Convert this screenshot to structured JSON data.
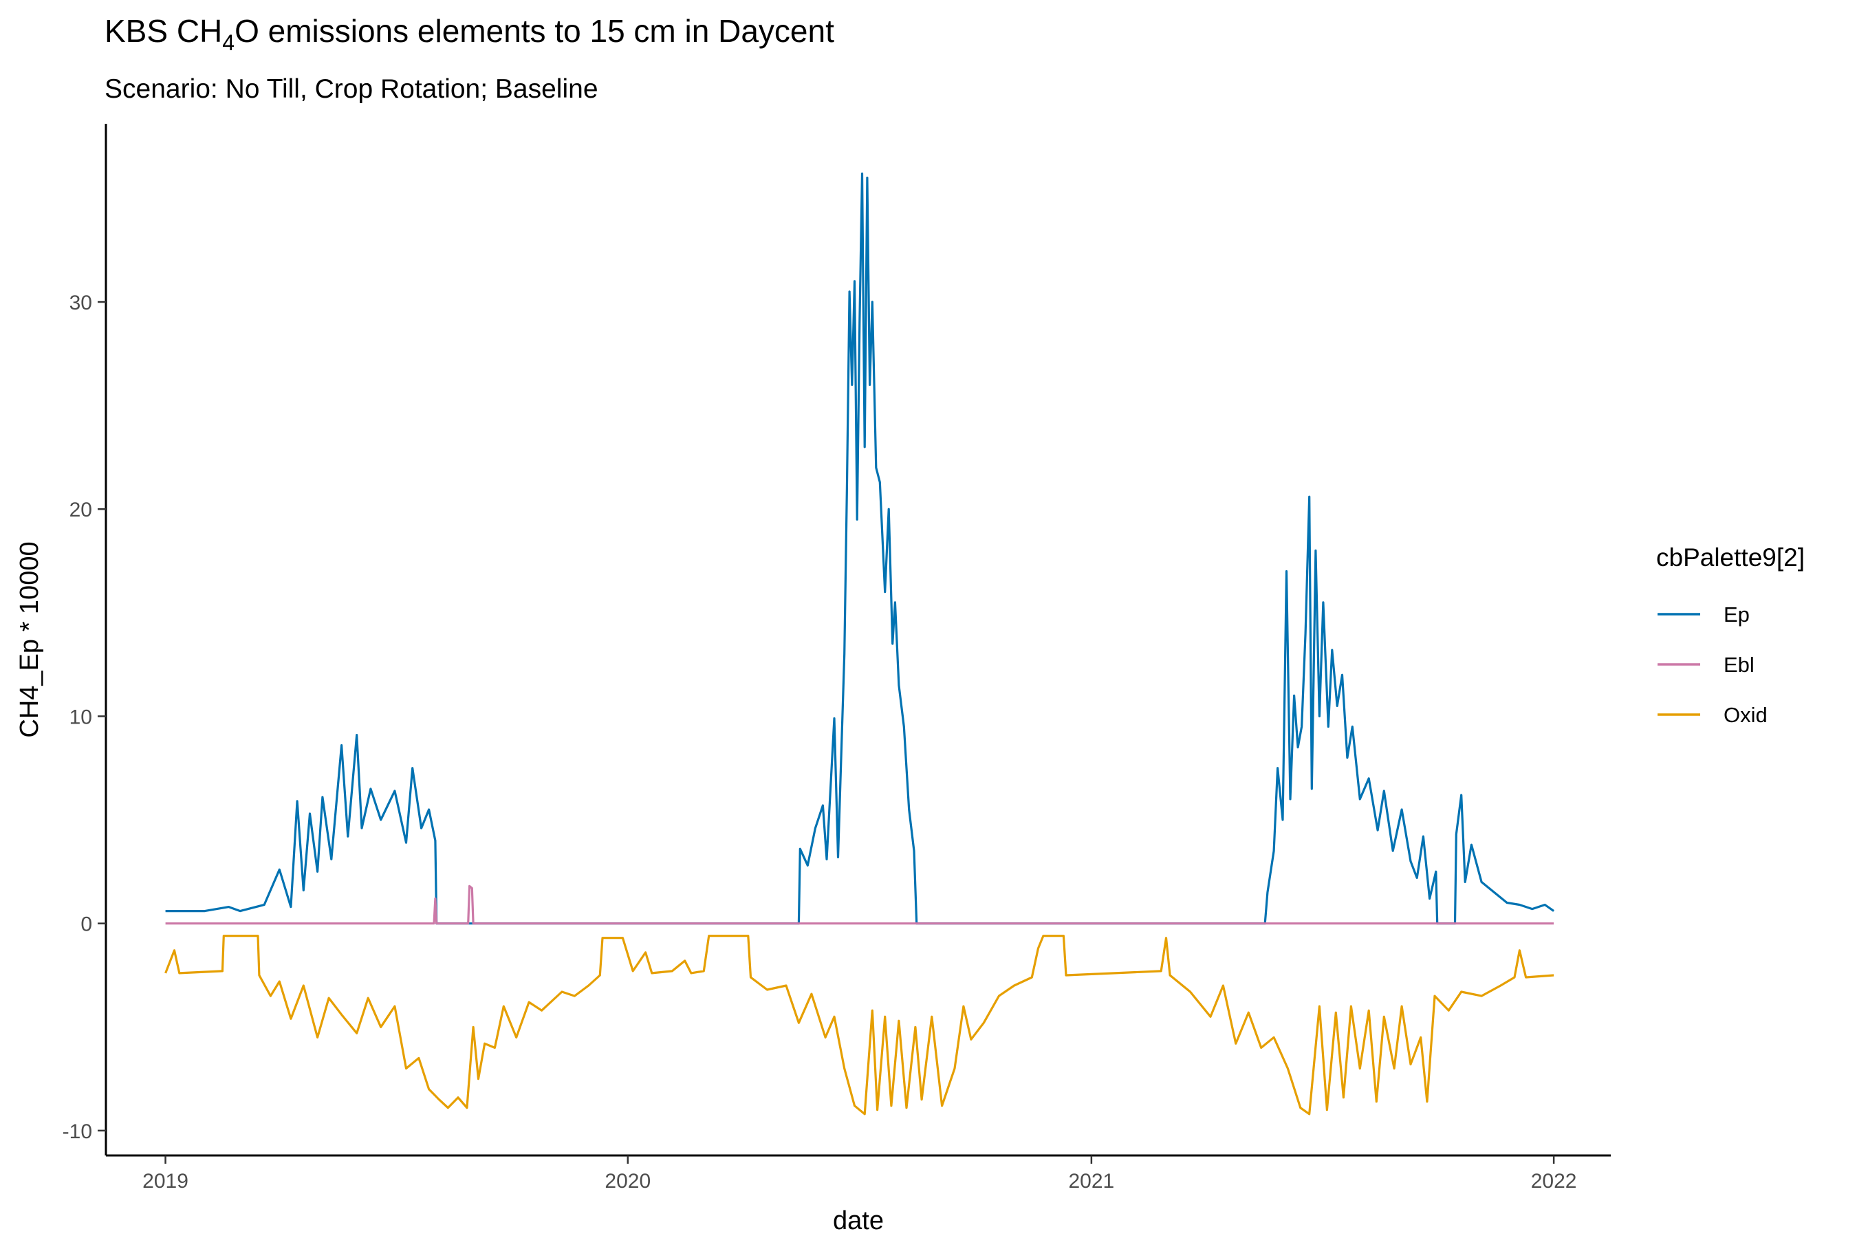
{
  "chart_data": {
    "type": "line",
    "title": "KBS CH",
    "title_subscript": "4",
    "title_rest": "O emissions elements to 15 cm in Daycent",
    "subtitle": "Scenario: No Till, Crop Rotation; Baseline",
    "xlabel": "date",
    "ylabel": "CH4_Ep * 10000",
    "xlim": [
      "2018-11-15",
      "2022-02-15"
    ],
    "ylim": [
      -11.2,
      38.6
    ],
    "x_ticks": [
      {
        "label": "2019",
        "date": "2019-01-01"
      },
      {
        "label": "2020",
        "date": "2020-01-01"
      },
      {
        "label": "2021",
        "date": "2021-01-01"
      },
      {
        "label": "2022",
        "date": "2022-01-01"
      }
    ],
    "y_ticks": [
      -10,
      0,
      10,
      20,
      30
    ],
    "grid": false,
    "legend": {
      "title": "cbPalette9[2]",
      "position": "right"
    },
    "series": [
      {
        "name": "Ep",
        "color": "#0072B2",
        "points": [
          [
            "2019-01-01",
            0.6
          ],
          [
            "2019-02-01",
            0.6
          ],
          [
            "2019-02-20",
            0.8
          ],
          [
            "2019-03-01",
            0.6
          ],
          [
            "2019-03-20",
            0.9
          ],
          [
            "2019-04-01",
            2.6
          ],
          [
            "2019-04-10",
            0.8
          ],
          [
            "2019-04-15",
            5.9
          ],
          [
            "2019-04-20",
            1.6
          ],
          [
            "2019-04-25",
            5.3
          ],
          [
            "2019-05-01",
            2.5
          ],
          [
            "2019-05-05",
            6.1
          ],
          [
            "2019-05-12",
            3.1
          ],
          [
            "2019-05-20",
            8.6
          ],
          [
            "2019-05-25",
            4.2
          ],
          [
            "2019-06-01",
            9.1
          ],
          [
            "2019-06-05",
            4.6
          ],
          [
            "2019-06-12",
            6.5
          ],
          [
            "2019-06-20",
            5.0
          ],
          [
            "2019-07-01",
            6.4
          ],
          [
            "2019-07-10",
            3.9
          ],
          [
            "2019-07-15",
            7.5
          ],
          [
            "2019-07-22",
            4.6
          ],
          [
            "2019-07-28",
            5.5
          ],
          [
            "2019-08-02",
            4.0
          ],
          [
            "2019-08-03",
            0.0
          ],
          [
            "2020-05-15",
            0.0
          ],
          [
            "2020-05-16",
            3.6
          ],
          [
            "2020-05-22",
            2.8
          ],
          [
            "2020-05-28",
            4.6
          ],
          [
            "2020-06-03",
            5.7
          ],
          [
            "2020-06-06",
            3.1
          ],
          [
            "2020-06-12",
            9.9
          ],
          [
            "2020-06-15",
            3.2
          ],
          [
            "2020-06-20",
            13.0
          ],
          [
            "2020-06-22",
            21.0
          ],
          [
            "2020-06-24",
            30.5
          ],
          [
            "2020-06-26",
            26.0
          ],
          [
            "2020-06-28",
            31.0
          ],
          [
            "2020-06-30",
            19.5
          ],
          [
            "2020-07-02",
            29.0
          ],
          [
            "2020-07-04",
            36.2
          ],
          [
            "2020-07-06",
            23.0
          ],
          [
            "2020-07-08",
            36.0
          ],
          [
            "2020-07-10",
            26.0
          ],
          [
            "2020-07-12",
            30.0
          ],
          [
            "2020-07-15",
            22.0
          ],
          [
            "2020-07-18",
            21.3
          ],
          [
            "2020-07-22",
            16.0
          ],
          [
            "2020-07-25",
            20.0
          ],
          [
            "2020-07-28",
            13.5
          ],
          [
            "2020-07-30",
            15.5
          ],
          [
            "2020-08-02",
            11.5
          ],
          [
            "2020-08-06",
            9.5
          ],
          [
            "2020-08-10",
            5.5
          ],
          [
            "2020-08-14",
            3.5
          ],
          [
            "2020-08-16",
            0.0
          ],
          [
            "2021-05-18",
            0.0
          ],
          [
            "2021-05-20",
            1.5
          ],
          [
            "2021-05-25",
            3.5
          ],
          [
            "2021-05-28",
            7.5
          ],
          [
            "2021-06-01",
            5.0
          ],
          [
            "2021-06-04",
            17.0
          ],
          [
            "2021-06-07",
            6.0
          ],
          [
            "2021-06-10",
            11.0
          ],
          [
            "2021-06-13",
            8.5
          ],
          [
            "2021-06-16",
            9.5
          ],
          [
            "2021-06-19",
            14.0
          ],
          [
            "2021-06-22",
            20.6
          ],
          [
            "2021-06-24",
            6.5
          ],
          [
            "2021-06-27",
            18.0
          ],
          [
            "2021-06-30",
            10.0
          ],
          [
            "2021-07-03",
            15.5
          ],
          [
            "2021-07-07",
            9.5
          ],
          [
            "2021-07-10",
            13.2
          ],
          [
            "2021-07-14",
            10.5
          ],
          [
            "2021-07-18",
            12.0
          ],
          [
            "2021-07-22",
            8.0
          ],
          [
            "2021-07-26",
            9.5
          ],
          [
            "2021-08-01",
            6.0
          ],
          [
            "2021-08-08",
            7.0
          ],
          [
            "2021-08-15",
            4.5
          ],
          [
            "2021-08-20",
            6.4
          ],
          [
            "2021-08-27",
            3.5
          ],
          [
            "2021-09-03",
            5.5
          ],
          [
            "2021-09-10",
            3.0
          ],
          [
            "2021-09-15",
            2.2
          ],
          [
            "2021-09-20",
            4.2
          ],
          [
            "2021-09-25",
            1.2
          ],
          [
            "2021-09-30",
            2.5
          ],
          [
            "2021-10-01",
            0.0
          ],
          [
            "2021-10-15",
            0.0
          ],
          [
            "2021-10-16",
            4.3
          ],
          [
            "2021-10-20",
            6.2
          ],
          [
            "2021-10-23",
            2.0
          ],
          [
            "2021-10-28",
            3.8
          ],
          [
            "2021-11-05",
            2.0
          ],
          [
            "2021-11-15",
            1.5
          ],
          [
            "2021-11-25",
            1.0
          ],
          [
            "2021-12-05",
            0.9
          ],
          [
            "2021-12-15",
            0.7
          ],
          [
            "2021-12-25",
            0.9
          ],
          [
            "2022-01-01",
            0.6
          ]
        ]
      },
      {
        "name": "Ebl",
        "color": "#CC79A7",
        "points": [
          [
            "2019-01-01",
            0.0
          ],
          [
            "2019-08-01",
            0.0
          ],
          [
            "2019-08-02",
            1.2
          ],
          [
            "2019-08-03",
            0.0
          ],
          [
            "2019-08-28",
            0.0
          ],
          [
            "2019-08-29",
            1.8
          ],
          [
            "2019-08-31",
            1.7
          ],
          [
            "2019-09-01",
            0.0
          ],
          [
            "2022-01-01",
            0.0
          ]
        ]
      },
      {
        "name": "Oxid",
        "color": "#E69F00",
        "points": [
          [
            "2019-01-01",
            -2.4
          ],
          [
            "2019-01-08",
            -1.3
          ],
          [
            "2019-01-12",
            -2.4
          ],
          [
            "2019-02-15",
            -2.3
          ],
          [
            "2019-02-16",
            -0.6
          ],
          [
            "2019-03-15",
            -0.6
          ],
          [
            "2019-03-16",
            -2.5
          ],
          [
            "2019-03-25",
            -3.5
          ],
          [
            "2019-04-01",
            -2.8
          ],
          [
            "2019-04-10",
            -4.6
          ],
          [
            "2019-04-20",
            -3.0
          ],
          [
            "2019-05-01",
            -5.5
          ],
          [
            "2019-05-10",
            -3.6
          ],
          [
            "2019-05-20",
            -4.4
          ],
          [
            "2019-06-01",
            -5.3
          ],
          [
            "2019-06-10",
            -3.6
          ],
          [
            "2019-06-20",
            -5.0
          ],
          [
            "2019-07-01",
            -4.0
          ],
          [
            "2019-07-10",
            -7.0
          ],
          [
            "2019-07-20",
            -6.5
          ],
          [
            "2019-07-28",
            -8.0
          ],
          [
            "2019-08-05",
            -8.5
          ],
          [
            "2019-08-12",
            -8.9
          ],
          [
            "2019-08-20",
            -8.4
          ],
          [
            "2019-08-27",
            -8.9
          ],
          [
            "2019-09-01",
            -5.0
          ],
          [
            "2019-09-05",
            -7.5
          ],
          [
            "2019-09-10",
            -5.8
          ],
          [
            "2019-09-18",
            -6.0
          ],
          [
            "2019-09-25",
            -4.0
          ],
          [
            "2019-10-05",
            -5.5
          ],
          [
            "2019-10-15",
            -3.8
          ],
          [
            "2019-10-25",
            -4.2
          ],
          [
            "2019-11-10",
            -3.3
          ],
          [
            "2019-11-20",
            -3.5
          ],
          [
            "2019-12-01",
            -3.0
          ],
          [
            "2019-12-10",
            -2.5
          ],
          [
            "2019-12-12",
            -0.7
          ],
          [
            "2019-12-28",
            -0.7
          ],
          [
            "2020-01-05",
            -2.3
          ],
          [
            "2020-01-15",
            -1.4
          ],
          [
            "2020-01-20",
            -2.4
          ],
          [
            "2020-02-05",
            -2.3
          ],
          [
            "2020-02-15",
            -1.8
          ],
          [
            "2020-02-20",
            -2.4
          ],
          [
            "2020-03-01",
            -2.3
          ],
          [
            "2020-03-05",
            -0.6
          ],
          [
            "2020-04-05",
            -0.6
          ],
          [
            "2020-04-07",
            -2.6
          ],
          [
            "2020-04-20",
            -3.2
          ],
          [
            "2020-05-05",
            -3.0
          ],
          [
            "2020-05-15",
            -4.8
          ],
          [
            "2020-05-25",
            -3.4
          ],
          [
            "2020-06-05",
            -5.5
          ],
          [
            "2020-06-12",
            -4.5
          ],
          [
            "2020-06-20",
            -7.0
          ],
          [
            "2020-06-28",
            -8.8
          ],
          [
            "2020-07-06",
            -9.2
          ],
          [
            "2020-07-12",
            -4.2
          ],
          [
            "2020-07-16",
            -9.0
          ],
          [
            "2020-07-22",
            -4.5
          ],
          [
            "2020-07-27",
            -8.8
          ],
          [
            "2020-08-02",
            -4.7
          ],
          [
            "2020-08-08",
            -8.9
          ],
          [
            "2020-08-15",
            -5.0
          ],
          [
            "2020-08-20",
            -8.5
          ],
          [
            "2020-08-28",
            -4.5
          ],
          [
            "2020-09-05",
            -8.8
          ],
          [
            "2020-09-15",
            -7.0
          ],
          [
            "2020-09-22",
            -4.0
          ],
          [
            "2020-09-28",
            -5.6
          ],
          [
            "2020-10-08",
            -4.8
          ],
          [
            "2020-10-20",
            -3.5
          ],
          [
            "2020-11-01",
            -3.0
          ],
          [
            "2020-11-15",
            -2.6
          ],
          [
            "2020-11-20",
            -1.2
          ],
          [
            "2020-11-24",
            -0.6
          ],
          [
            "2020-12-10",
            -0.6
          ],
          [
            "2020-12-12",
            -2.5
          ],
          [
            "2021-02-25",
            -2.3
          ],
          [
            "2021-03-01",
            -0.7
          ],
          [
            "2021-03-04",
            -2.5
          ],
          [
            "2021-03-20",
            -3.3
          ],
          [
            "2021-04-05",
            -4.5
          ],
          [
            "2021-04-15",
            -3.0
          ],
          [
            "2021-04-25",
            -5.8
          ],
          [
            "2021-05-05",
            -4.3
          ],
          [
            "2021-05-15",
            -6.0
          ],
          [
            "2021-05-25",
            -5.5
          ],
          [
            "2021-06-05",
            -7.0
          ],
          [
            "2021-06-15",
            -8.9
          ],
          [
            "2021-06-22",
            -9.2
          ],
          [
            "2021-06-30",
            -4.0
          ],
          [
            "2021-07-06",
            -9.0
          ],
          [
            "2021-07-13",
            -4.3
          ],
          [
            "2021-07-19",
            -8.4
          ],
          [
            "2021-07-25",
            -4.0
          ],
          [
            "2021-08-01",
            -7.0
          ],
          [
            "2021-08-08",
            -4.2
          ],
          [
            "2021-08-14",
            -8.6
          ],
          [
            "2021-08-20",
            -4.5
          ],
          [
            "2021-08-28",
            -7.0
          ],
          [
            "2021-09-03",
            -4.0
          ],
          [
            "2021-09-10",
            -6.8
          ],
          [
            "2021-09-18",
            -5.5
          ],
          [
            "2021-09-23",
            -8.6
          ],
          [
            "2021-09-29",
            -3.5
          ],
          [
            "2021-10-10",
            -4.2
          ],
          [
            "2021-10-20",
            -3.3
          ],
          [
            "2021-11-05",
            -3.5
          ],
          [
            "2021-11-20",
            -3.0
          ],
          [
            "2021-12-01",
            -2.6
          ],
          [
            "2021-12-05",
            -1.3
          ],
          [
            "2021-12-10",
            -2.6
          ],
          [
            "2022-01-01",
            -2.5
          ]
        ]
      }
    ]
  }
}
